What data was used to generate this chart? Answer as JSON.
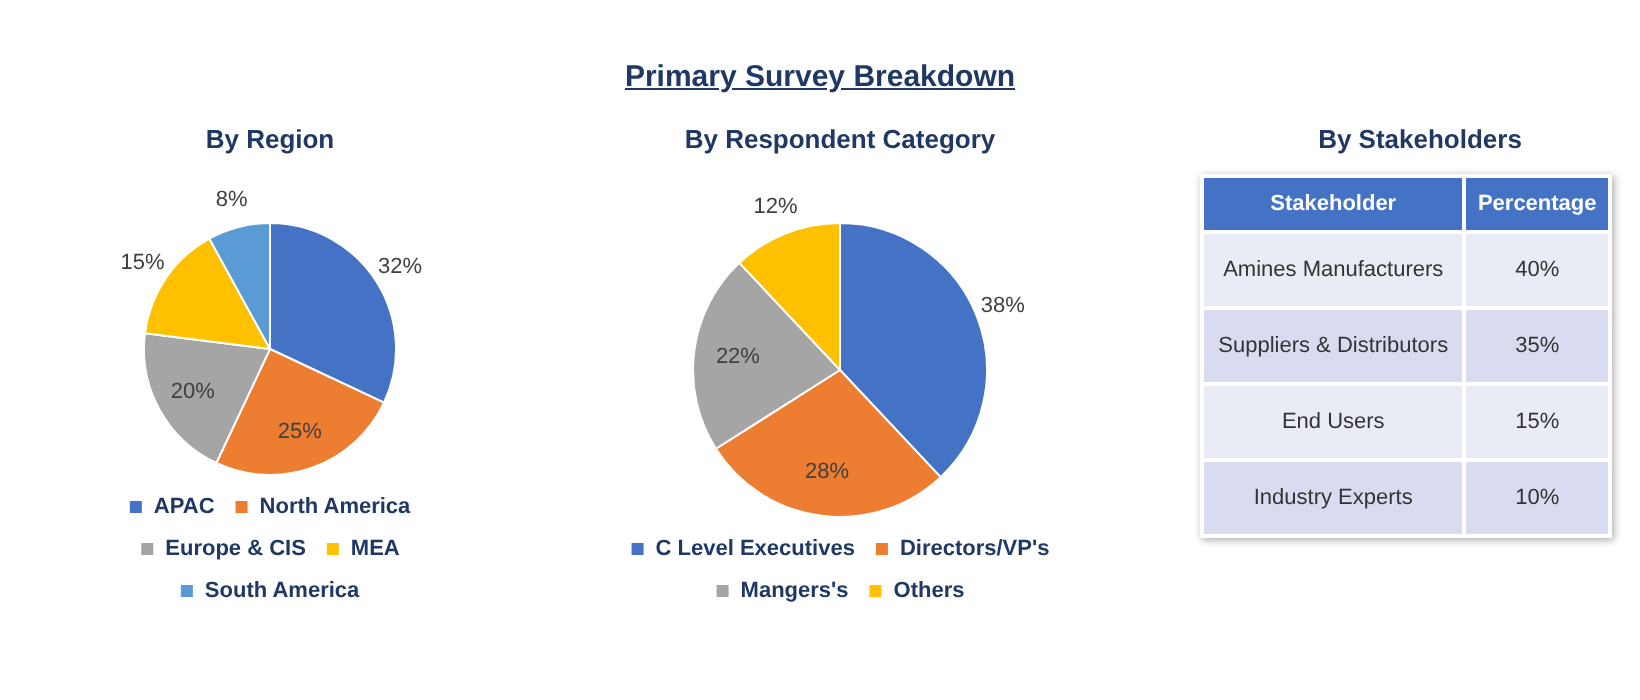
{
  "chart_data": [
    {
      "type": "pie",
      "title": "By Region",
      "annotations": [
        "Primary Survey Breakdown"
      ],
      "categories": [
        "APAC",
        "North America",
        "Europe & CIS",
        "MEA",
        "South America"
      ],
      "values": [
        32,
        25,
        20,
        15,
        8
      ],
      "value_labels": [
        "32%",
        "25%",
        "20%",
        "15%",
        "8%"
      ],
      "colors": [
        "#4472c4",
        "#ed7d31",
        "#a5a5a5",
        "#ffc000",
        "#5b9bd5"
      ],
      "legend": "bottom"
    },
    {
      "type": "pie",
      "title": "By Respondent Category",
      "categories": [
        "C Level Executives",
        "Directors/VP's",
        "Mangers's",
        "Others"
      ],
      "values": [
        38,
        28,
        22,
        12
      ],
      "value_labels": [
        "38%",
        "28%",
        "22%",
        "12%"
      ],
      "colors": [
        "#4472c4",
        "#ed7d31",
        "#a5a5a5",
        "#ffc000"
      ],
      "legend": "bottom"
    },
    {
      "type": "other",
      "title": "By Stakeholders",
      "annotations": [
        "Stakeholder",
        "Percentage"
      ],
      "categories": [
        "Amines Manufacturers",
        "Suppliers & Distributors",
        "End Users",
        "Industry Experts"
      ],
      "value_labels": [
        "40%",
        "35%",
        "15%",
        "10%"
      ]
    }
  ]
}
